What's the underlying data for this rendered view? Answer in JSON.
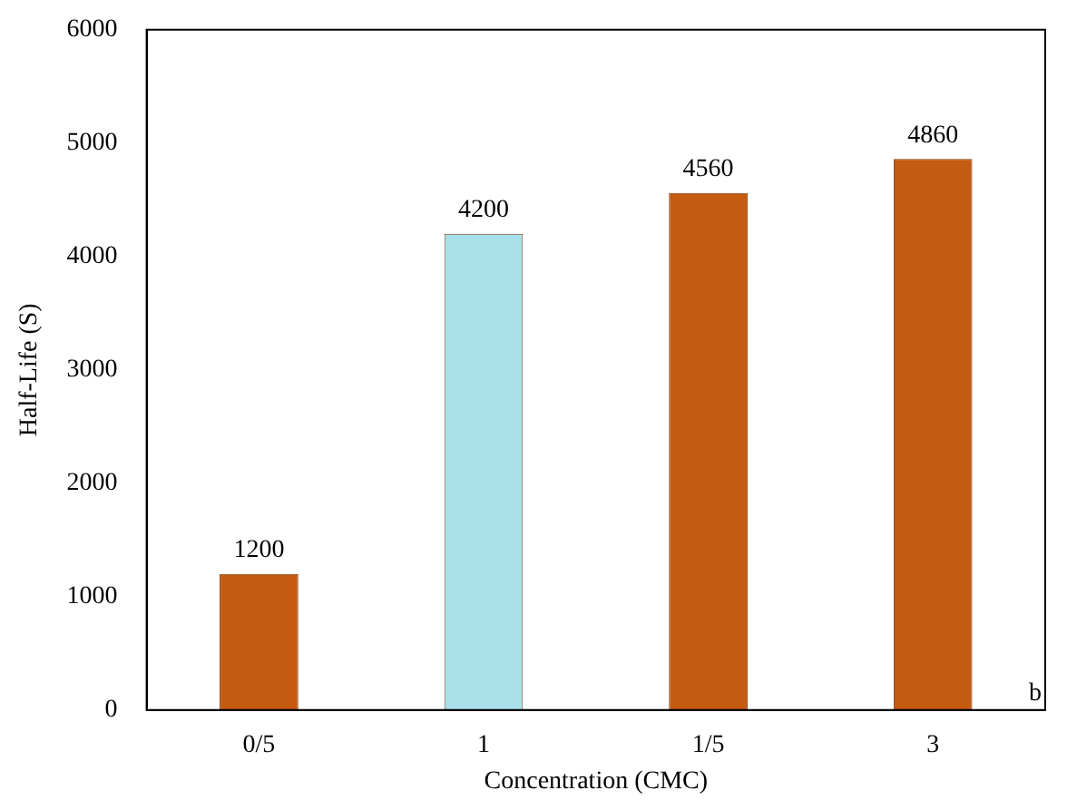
{
  "chart_data": {
    "type": "bar",
    "xlabel": "Concentration (CMC)",
    "ylabel": "Half-Life (S)",
    "categories": [
      "0/5",
      "1",
      "1/5",
      "3"
    ],
    "values": [
      1200,
      4200,
      4560,
      4860
    ],
    "colors": [
      "#c55a11",
      "#a9dfe9",
      "#c55a11",
      "#c55a11"
    ],
    "ylim": [
      0,
      6000
    ],
    "yticks": [
      0,
      1000,
      2000,
      3000,
      4000,
      5000,
      6000
    ],
    "grid": false,
    "legend": false,
    "data_labels": true,
    "annotations": [
      "b"
    ]
  }
}
